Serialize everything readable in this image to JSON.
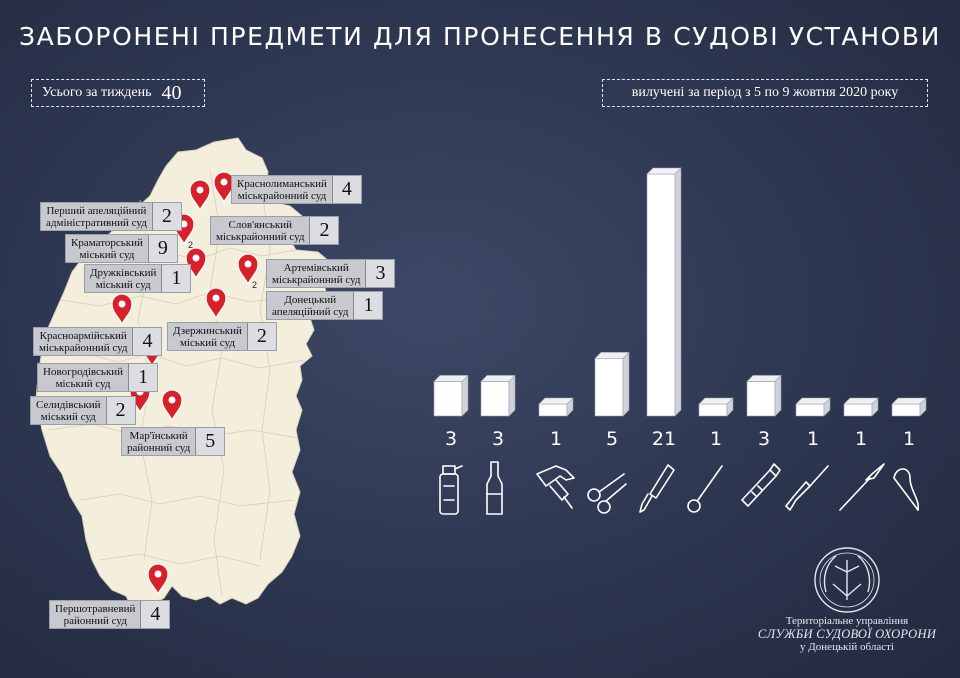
{
  "title": "ЗАБОРОНЕНІ ПРЕДМЕТИ ДЛЯ ПРОНЕСЕННЯ В СУДОВІ УСТАНОВИ",
  "total": {
    "label": "Усього за тиждень",
    "value": "40"
  },
  "period": "вилучені за період з 5 по 9 жовтня 2020 року",
  "courts": [
    {
      "name1": "Краснолиманський",
      "name2": "міськрайонний суд",
      "count": "4"
    },
    {
      "name1": "Перший апеляційний",
      "name2": "адміністративний суд",
      "count": "2"
    },
    {
      "name1": "Слов'янський",
      "name2": "міськрайонний суд",
      "count": "2"
    },
    {
      "name1": "Краматорський",
      "name2": "міський суд",
      "count": "9"
    },
    {
      "name1": "Дружківський",
      "name2": "міський суд",
      "count": "1"
    },
    {
      "name1": "Артемівський",
      "name2": "міськрайонний суд",
      "count": "3"
    },
    {
      "name1": "Донецький",
      "name2": "апеляційний суд",
      "count": "1"
    },
    {
      "name1": "Дзержинський",
      "name2": "міський суд",
      "count": "2"
    },
    {
      "name1": "Красноармійський",
      "name2": "міськрайонний суд",
      "count": "4"
    },
    {
      "name1": "Новогродівський",
      "name2": "міський суд",
      "count": "1"
    },
    {
      "name1": "Селидівський",
      "name2": "міський суд",
      "count": "2"
    },
    {
      "name1": "Мар'їнський",
      "name2": "районний суд",
      "count": "5"
    },
    {
      "name1": "Першотравневий",
      "name2": "районний суд",
      "count": "4"
    }
  ],
  "pin_counts": [
    "2",
    "2"
  ],
  "chart_data": {
    "type": "bar",
    "categories": [
      "spray-bottle",
      "glass-bottle",
      "hammer",
      "scissors",
      "knife",
      "awl",
      "utility-knife",
      "screwdriver",
      "scalpel",
      "hook-needle"
    ],
    "values": [
      3,
      3,
      1,
      5,
      21,
      1,
      3,
      1,
      1,
      1
    ],
    "value_labels": [
      "3",
      "3",
      "1",
      "5",
      "21",
      "1",
      "3",
      "1",
      "1",
      "1"
    ],
    "bar_color": "#ffffff"
  },
  "emblem": {
    "line1": "Територіальне управління",
    "line2": "СЛУЖБИ СУДОВОЇ ОХОРОНИ",
    "line3": "у Донецькій області"
  },
  "colors": {
    "background": "#2d3650",
    "pin": "#d8202a",
    "map": "#f3efdc"
  }
}
